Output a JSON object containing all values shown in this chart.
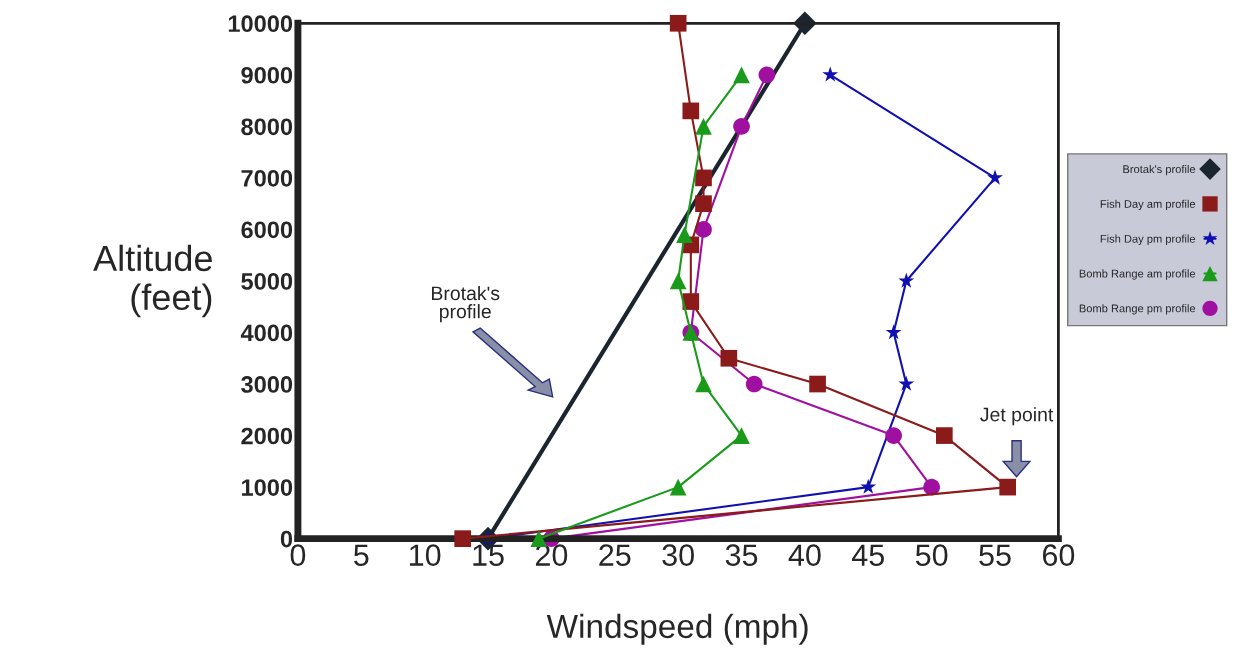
{
  "chart_data": {
    "type": "line",
    "xlabel": "Windspeed (mph)",
    "ylabel": "Altitude\n(feet)",
    "xlim": [
      0,
      60
    ],
    "xticks": [
      0,
      5,
      10,
      15,
      20,
      25,
      30,
      35,
      40,
      45,
      50,
      55,
      60
    ],
    "ylim": [
      0,
      10000
    ],
    "yticks": [
      0,
      1000,
      2000,
      3000,
      4000,
      5000,
      6000,
      7000,
      8000,
      9000,
      10000
    ],
    "grid": false,
    "legend": "right",
    "series": [
      {
        "name": "Brotak's profile",
        "color": "#1a2530",
        "marker": "diamond",
        "x": [
          15,
          40
        ],
        "values": [
          0,
          10000
        ]
      },
      {
        "name": "Fish Day am profile",
        "color": "#8b1a1a",
        "marker": "square",
        "x": [
          13,
          56,
          51,
          41,
          34,
          31,
          31,
          32,
          32,
          31,
          30
        ],
        "values": [
          0,
          1000,
          2000,
          3000,
          3500,
          4600,
          5700,
          6500,
          7000,
          8300,
          10000
        ]
      },
      {
        "name": "Fish Day pm profile",
        "color": "#1010b0",
        "marker": "star",
        "x": [
          15,
          45,
          48,
          47,
          48,
          55,
          42
        ],
        "values": [
          0,
          1000,
          3000,
          4000,
          5000,
          7000,
          9000
        ]
      },
      {
        "name": "Bomb Range am profile",
        "color": "#1a9a1a",
        "marker": "triangle",
        "x": [
          19,
          30,
          35,
          32,
          31,
          30,
          30.5,
          32,
          35
        ],
        "values": [
          0,
          1000,
          2000,
          3000,
          4000,
          5000,
          5900,
          8000,
          9000
        ]
      },
      {
        "name": "Bomb Range pm profile",
        "color": "#a010a0",
        "marker": "circle",
        "x": [
          20,
          50,
          47,
          36,
          31,
          32,
          35,
          37
        ],
        "values": [
          0,
          1000,
          2000,
          3000,
          4000,
          6000,
          8000,
          9000
        ]
      }
    ],
    "annotations": [
      "Brotak's profile",
      "Jet point"
    ]
  }
}
